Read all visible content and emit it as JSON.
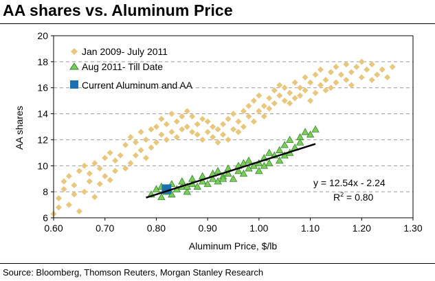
{
  "header": {
    "title": "AA shares vs. Aluminum Price"
  },
  "footer": {
    "source": "Source: Bloomberg, Thomson Reuters, Morgan Stanley Research"
  },
  "colors": {
    "series1": "#e8c77c",
    "series2": "#7ecb5c",
    "series2_edge": "#2f8a2a",
    "series3": "#1a70b0",
    "trend": "#000000",
    "grid": "#999999"
  },
  "chart_data": {
    "type": "scatter",
    "xlabel": "Aluminum Price, $/lb",
    "ylabel": "AA shares",
    "xlim": [
      0.6,
      1.3
    ],
    "ylim": [
      6,
      20
    ],
    "xticks": [
      0.6,
      0.7,
      0.8,
      0.9,
      1.0,
      1.1,
      1.2,
      1.3
    ],
    "xtick_labels": [
      "0.60",
      "0.70",
      "0.80",
      "0.90",
      "1.00",
      "1.10",
      "1.20",
      "1.30"
    ],
    "yticks": [
      6,
      8,
      10,
      12,
      14,
      16,
      18,
      20
    ],
    "ytick_labels": [
      "6",
      "8",
      "10",
      "12",
      "14",
      "16",
      "18",
      "20"
    ],
    "gridlines": "horizontal dashed",
    "legend_position": "top-left",
    "series": [
      {
        "name": "Jan 2009- July 2011",
        "marker": "diamond",
        "points": [
          [
            0.6,
            6.3
          ],
          [
            0.61,
            6.8
          ],
          [
            0.61,
            7.5
          ],
          [
            0.62,
            8.2
          ],
          [
            0.62,
            8.8
          ],
          [
            0.63,
            7.0
          ],
          [
            0.63,
            9.2
          ],
          [
            0.64,
            7.8
          ],
          [
            0.64,
            8.5
          ],
          [
            0.65,
            6.5
          ],
          [
            0.65,
            9.6
          ],
          [
            0.66,
            8.0
          ],
          [
            0.66,
            10.0
          ],
          [
            0.67,
            8.8
          ],
          [
            0.67,
            9.4
          ],
          [
            0.68,
            7.6
          ],
          [
            0.68,
            10.2
          ],
          [
            0.69,
            8.6
          ],
          [
            0.69,
            9.8
          ],
          [
            0.7,
            9.2
          ],
          [
            0.7,
            10.6
          ],
          [
            0.71,
            8.9
          ],
          [
            0.71,
            11.0
          ],
          [
            0.72,
            9.6
          ],
          [
            0.72,
            10.4
          ],
          [
            0.73,
            10.8
          ],
          [
            0.74,
            9.8
          ],
          [
            0.74,
            11.6
          ],
          [
            0.75,
            10.2
          ],
          [
            0.75,
            12.2
          ],
          [
            0.76,
            10.8
          ],
          [
            0.76,
            11.8
          ],
          [
            0.77,
            11.2
          ],
          [
            0.77,
            12.6
          ],
          [
            0.78,
            10.6
          ],
          [
            0.78,
            12.0
          ],
          [
            0.79,
            12.8
          ],
          [
            0.79,
            11.4
          ],
          [
            0.8,
            13.0
          ],
          [
            0.8,
            11.8
          ],
          [
            0.81,
            12.4
          ],
          [
            0.81,
            13.6
          ],
          [
            0.82,
            12.0
          ],
          [
            0.82,
            13.2
          ],
          [
            0.83,
            12.6
          ],
          [
            0.83,
            14.0
          ],
          [
            0.84,
            13.4
          ],
          [
            0.84,
            12.2
          ],
          [
            0.85,
            13.8
          ],
          [
            0.85,
            12.8
          ],
          [
            0.86,
            14.2
          ],
          [
            0.86,
            13.0
          ],
          [
            0.87,
            12.6
          ],
          [
            0.87,
            13.8
          ],
          [
            0.88,
            13.2
          ],
          [
            0.88,
            12.4
          ],
          [
            0.89,
            13.6
          ],
          [
            0.89,
            12.0
          ],
          [
            0.9,
            12.6
          ],
          [
            0.9,
            13.4
          ],
          [
            0.91,
            12.2
          ],
          [
            0.91,
            13.0
          ],
          [
            0.92,
            12.8
          ],
          [
            0.92,
            11.8
          ],
          [
            0.93,
            13.2
          ],
          [
            0.93,
            12.4
          ],
          [
            0.94,
            13.6
          ],
          [
            0.94,
            12.0
          ],
          [
            0.95,
            12.8
          ],
          [
            0.95,
            14.0
          ],
          [
            0.96,
            13.4
          ],
          [
            0.96,
            12.6
          ],
          [
            0.97,
            14.2
          ],
          [
            0.97,
            13.0
          ],
          [
            0.98,
            13.8
          ],
          [
            0.98,
            14.6
          ],
          [
            0.99,
            13.4
          ],
          [
            0.99,
            15.0
          ],
          [
            1.0,
            14.2
          ],
          [
            1.0,
            15.4
          ],
          [
            1.01,
            14.6
          ],
          [
            1.01,
            13.8
          ],
          [
            1.02,
            15.2
          ],
          [
            1.02,
            14.4
          ],
          [
            1.03,
            15.8
          ],
          [
            1.03,
            14.8
          ],
          [
            1.04,
            15.4
          ],
          [
            1.04,
            16.2
          ],
          [
            1.05,
            15.0
          ],
          [
            1.05,
            16.0
          ],
          [
            1.06,
            15.6
          ],
          [
            1.06,
            14.8
          ],
          [
            1.07,
            16.4
          ],
          [
            1.07,
            15.2
          ],
          [
            1.08,
            16.0
          ],
          [
            1.08,
            15.4
          ],
          [
            1.09,
            16.8
          ],
          [
            1.09,
            15.8
          ],
          [
            1.1,
            16.4
          ],
          [
            1.1,
            15.0
          ],
          [
            1.11,
            17.0
          ],
          [
            1.11,
            15.6
          ],
          [
            1.12,
            16.2
          ],
          [
            1.12,
            17.4
          ],
          [
            1.13,
            16.6
          ],
          [
            1.13,
            15.8
          ],
          [
            1.14,
            17.2
          ],
          [
            1.14,
            16.0
          ],
          [
            1.15,
            17.6
          ],
          [
            1.15,
            16.4
          ],
          [
            1.16,
            17.0
          ],
          [
            1.17,
            16.6
          ],
          [
            1.17,
            17.8
          ],
          [
            1.18,
            17.2
          ],
          [
            1.18,
            16.2
          ],
          [
            1.19,
            17.6
          ],
          [
            1.2,
            16.8
          ],
          [
            1.2,
            18.0
          ],
          [
            1.21,
            17.4
          ],
          [
            1.22,
            16.6
          ],
          [
            1.22,
            17.8
          ],
          [
            1.23,
            17.0
          ],
          [
            1.24,
            17.4
          ],
          [
            1.25,
            16.8
          ],
          [
            1.26,
            17.6
          ]
        ]
      },
      {
        "name": "Aug 2011- Till Date",
        "marker": "triangle",
        "points": [
          [
            0.79,
            7.8
          ],
          [
            0.8,
            8.2
          ],
          [
            0.81,
            7.6
          ],
          [
            0.81,
            8.4
          ],
          [
            0.82,
            8.0
          ],
          [
            0.83,
            7.8
          ],
          [
            0.83,
            8.6
          ],
          [
            0.84,
            8.2
          ],
          [
            0.85,
            8.4
          ],
          [
            0.85,
            8.8
          ],
          [
            0.86,
            8.0
          ],
          [
            0.87,
            8.6
          ],
          [
            0.87,
            9.0
          ],
          [
            0.88,
            8.4
          ],
          [
            0.89,
            8.8
          ],
          [
            0.89,
            9.2
          ],
          [
            0.9,
            8.6
          ],
          [
            0.91,
            9.0
          ],
          [
            0.91,
            9.4
          ],
          [
            0.92,
            8.8
          ],
          [
            0.92,
            9.6
          ],
          [
            0.93,
            9.2
          ],
          [
            0.94,
            9.4
          ],
          [
            0.94,
            9.8
          ],
          [
            0.95,
            9.0
          ],
          [
            0.96,
            9.6
          ],
          [
            0.96,
            10.0
          ],
          [
            0.97,
            9.4
          ],
          [
            0.98,
            9.8
          ],
          [
            0.98,
            10.4
          ],
          [
            0.99,
            10.0
          ],
          [
            1.0,
            10.2
          ],
          [
            1.0,
            9.6
          ],
          [
            1.01,
            10.6
          ],
          [
            1.02,
            10.2
          ],
          [
            1.02,
            11.0
          ],
          [
            1.03,
            10.8
          ],
          [
            1.04,
            11.2
          ],
          [
            1.04,
            10.4
          ],
          [
            1.05,
            11.6
          ],
          [
            1.06,
            11.0
          ],
          [
            1.06,
            12.0
          ],
          [
            1.07,
            11.4
          ],
          [
            1.08,
            12.2
          ],
          [
            1.08,
            11.8
          ],
          [
            1.09,
            12.6
          ],
          [
            1.1,
            12.4
          ],
          [
            1.11,
            12.8
          ],
          [
            0.86,
            8.4
          ],
          [
            0.93,
            9.0
          ],
          [
            0.97,
            10.2
          ],
          [
            1.01,
            10.0
          ],
          [
            1.05,
            10.8
          ]
        ]
      },
      {
        "name": "Current Aluminum and AA",
        "marker": "square",
        "points": [
          [
            0.82,
            8.2
          ]
        ]
      }
    ],
    "trendline": {
      "type": "linear",
      "from": [
        0.78,
        7.55
      ],
      "to": [
        1.11,
        11.68
      ],
      "equation": "y = 12.54x - 2.24",
      "r2_prefix": "R",
      "r2_sup": "2",
      "r2_value": " = 0.80"
    }
  }
}
